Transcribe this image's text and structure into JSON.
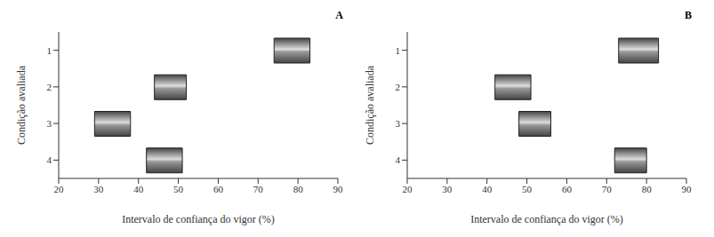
{
  "chart_data": [
    {
      "type": "bar",
      "title": "A",
      "orientation": "horizontal",
      "grid": false,
      "categories": [
        "1",
        "2",
        "3",
        "4"
      ],
      "values": [
        [
          74,
          83
        ],
        [
          44,
          52
        ],
        [
          29,
          38
        ],
        [
          42,
          51
        ]
      ],
      "color": "#999999",
      "x_label": "Intervalo de confiança do vigor (%)",
      "y_label": "Condição avaliada",
      "xlim": [
        20,
        90
      ],
      "xticks": [
        20,
        30,
        40,
        50,
        60,
        70,
        80,
        90
      ]
    },
    {
      "type": "bar",
      "title": "B",
      "orientation": "horizontal",
      "grid": false,
      "categories": [
        "1",
        "2",
        "3",
        "4"
      ],
      "values": [
        [
          73,
          83
        ],
        [
          42,
          51
        ],
        [
          48,
          56
        ],
        [
          72,
          80
        ]
      ],
      "color": "#999999",
      "x_label": "Intervalo de confiança do vigor (%)",
      "y_label": "Condição avaliada",
      "xlim": [
        20,
        90
      ],
      "xticks": [
        20,
        30,
        40,
        50,
        60,
        70,
        80,
        90
      ]
    }
  ]
}
